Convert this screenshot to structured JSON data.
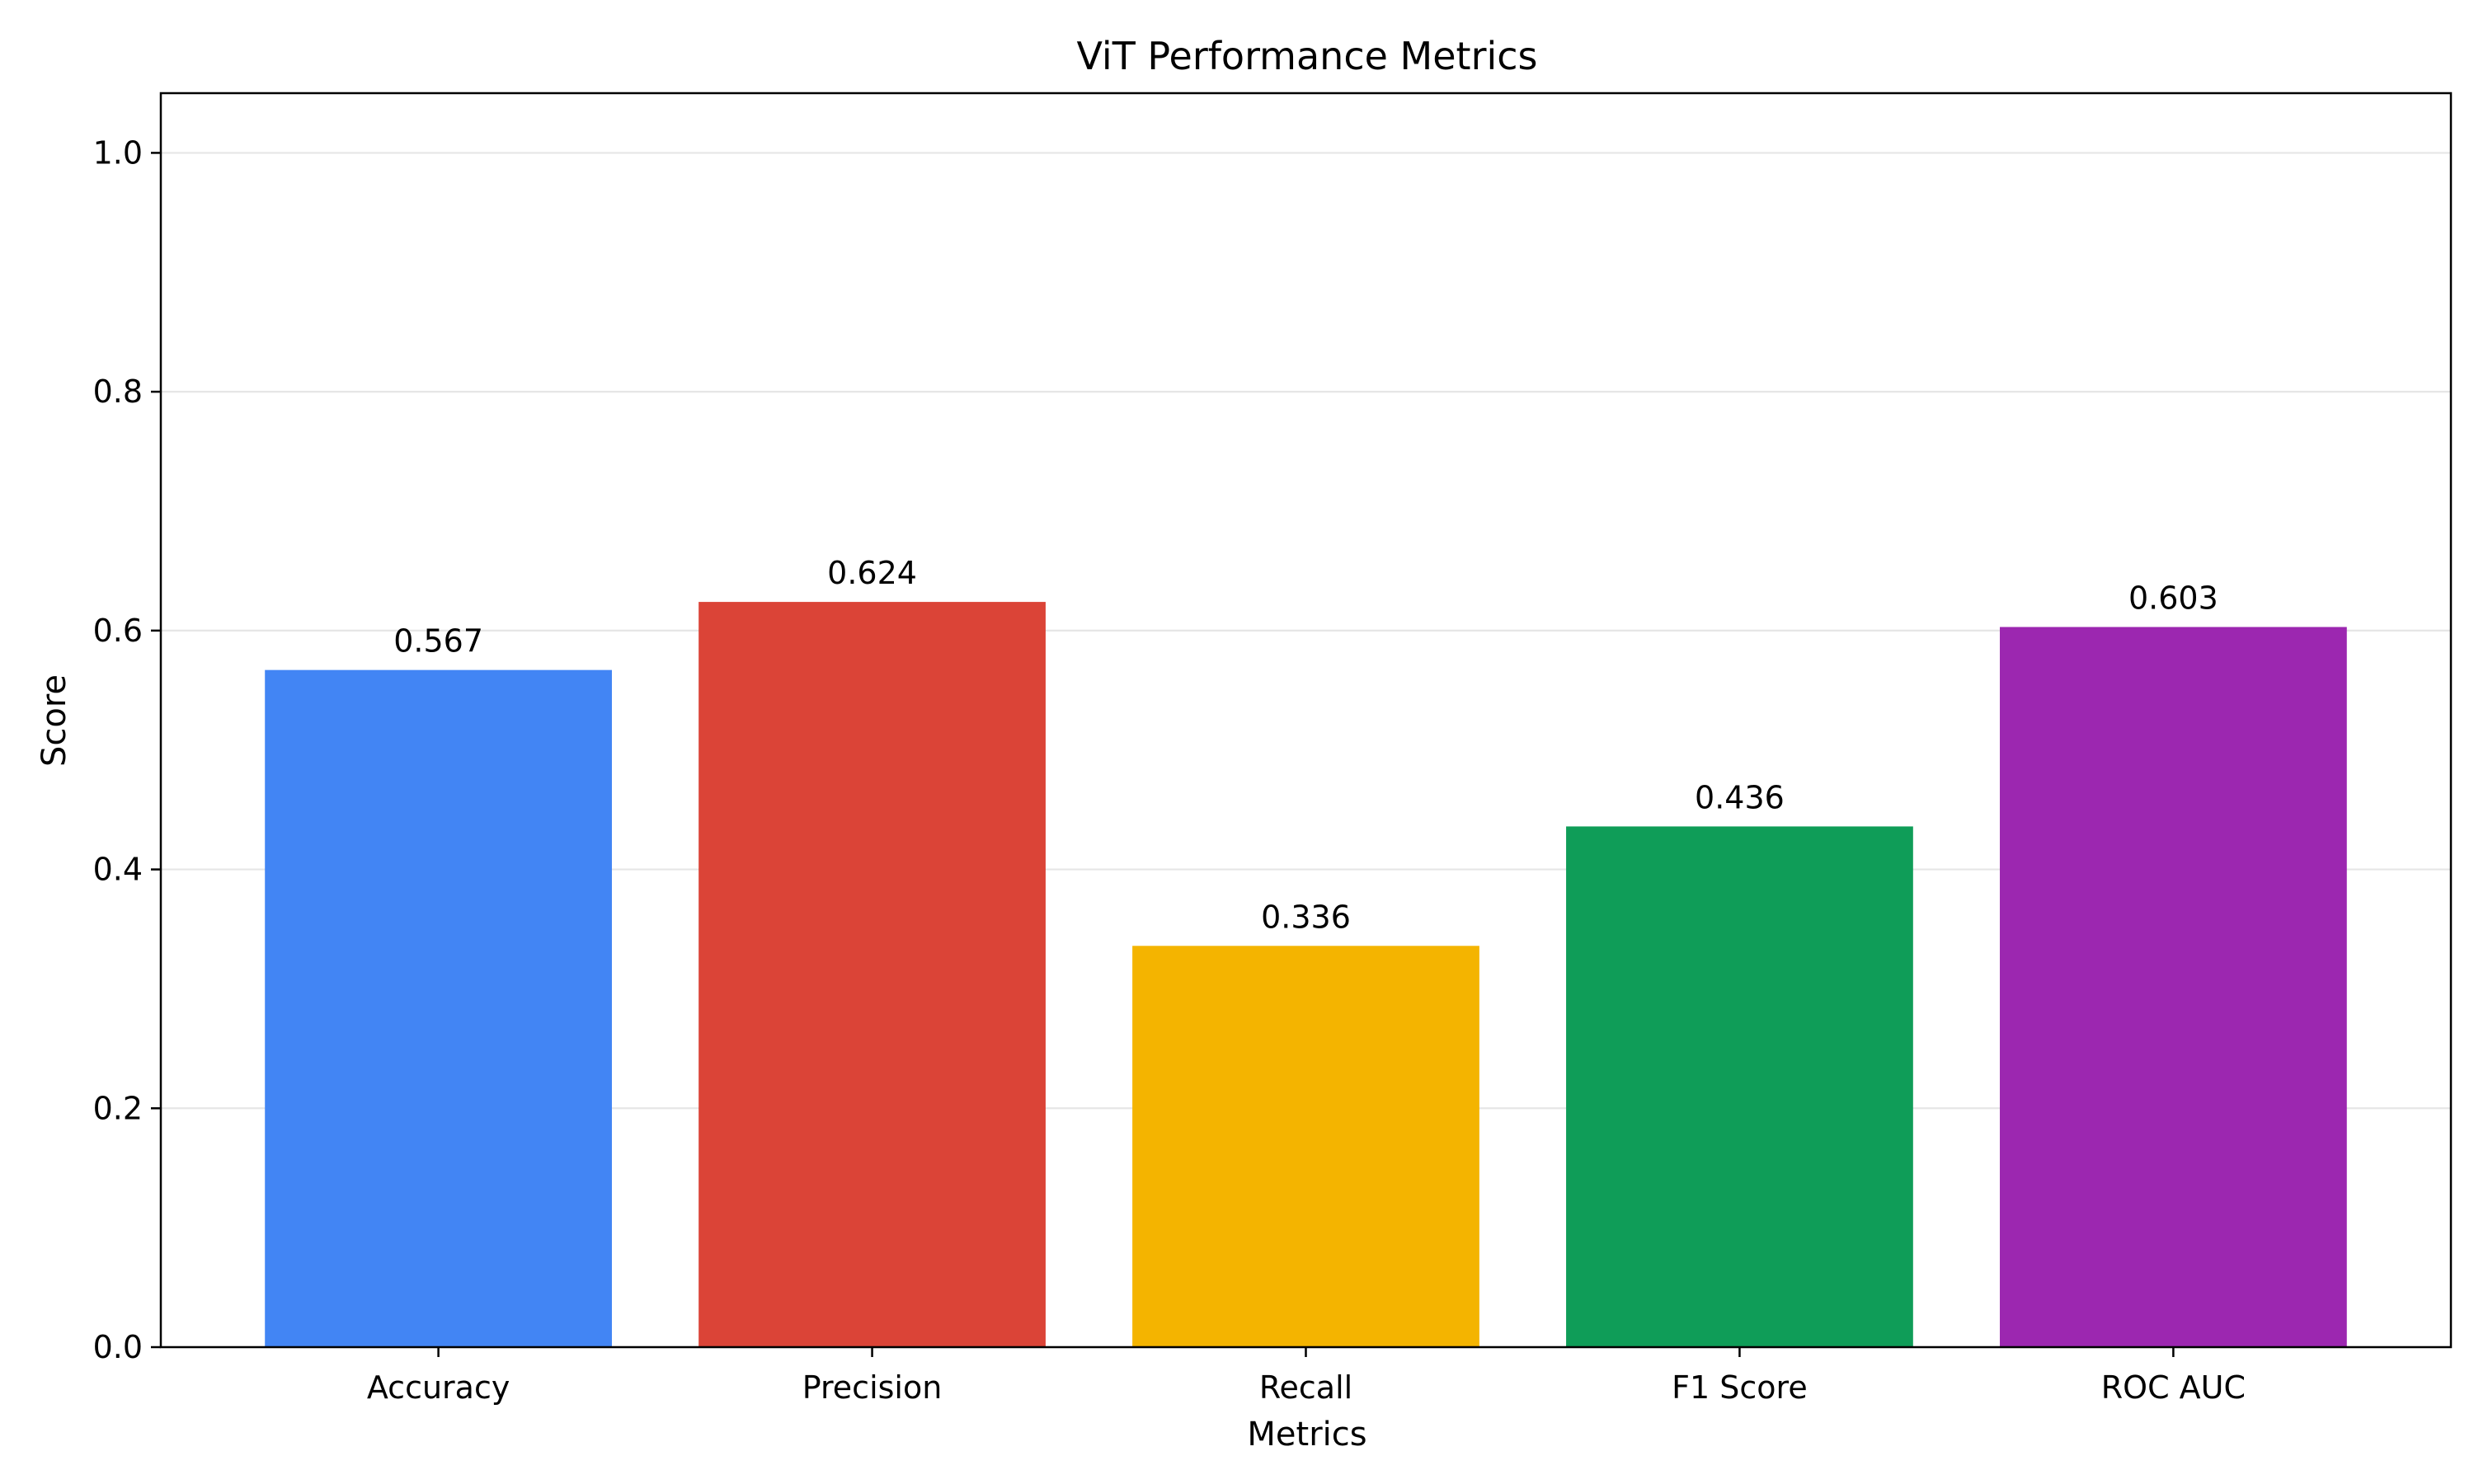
{
  "chart_data": {
    "type": "bar",
    "title": "ViT Performance Metrics",
    "xlabel": "Metrics",
    "ylabel": "Score",
    "categories": [
      "Accuracy",
      "Precision",
      "Recall",
      "F1 Score",
      "ROC AUC"
    ],
    "values": [
      0.567,
      0.624,
      0.336,
      0.436,
      0.603
    ],
    "value_labels": [
      "0.567",
      "0.624",
      "0.336",
      "0.436",
      "0.603"
    ],
    "colors": [
      "#4285f4",
      "#db4437",
      "#f4b400",
      "#0f9d58",
      "#9c27b0"
    ],
    "ylim": [
      0,
      1.05
    ],
    "yticks": [
      0.0,
      0.2,
      0.4,
      0.6,
      0.8,
      1.0
    ],
    "ytick_labels": [
      "0.0",
      "0.2",
      "0.4",
      "0.6",
      "0.8",
      "1.0"
    ],
    "grid": "y",
    "legend": "none"
  }
}
